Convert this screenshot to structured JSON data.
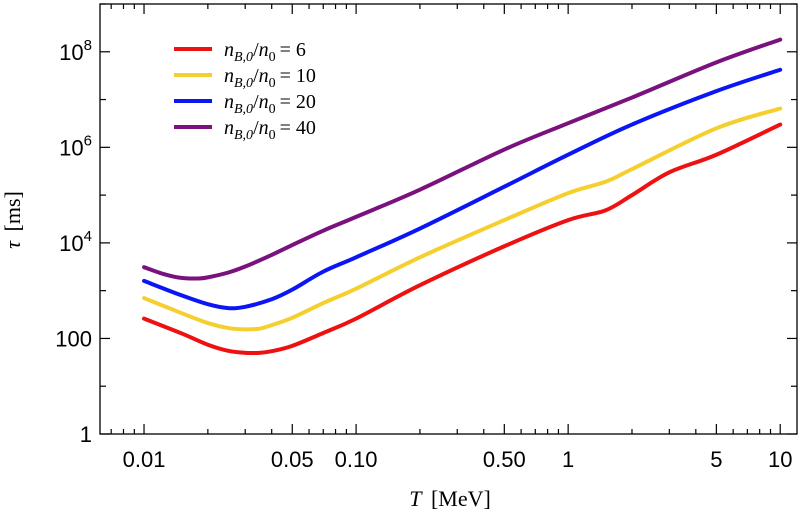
{
  "chart_data": {
    "type": "line",
    "xscale": "log",
    "yscale": "log",
    "xlim": [
      0.0062,
      12
    ],
    "ylim": [
      1,
      1000000000.0
    ],
    "xlabel": "T",
    "xlabel_unit": "[MeV]",
    "ylabel": "τ",
    "ylabel_unit": "[ms]",
    "x_ticks": [
      {
        "value": 0.01,
        "label": "0.01"
      },
      {
        "value": 0.05,
        "label": "0.05"
      },
      {
        "value": 0.1,
        "label": "0.10"
      },
      {
        "value": 0.5,
        "label": "0.50"
      },
      {
        "value": 1,
        "label": "1"
      },
      {
        "value": 5,
        "label": "5"
      },
      {
        "value": 10,
        "label": "10"
      }
    ],
    "y_ticks": [
      {
        "value": 1,
        "base": "1",
        "exp": ""
      },
      {
        "value": 100,
        "base": "100",
        "exp": ""
      },
      {
        "value": 10000,
        "base": "10",
        "exp": "4"
      },
      {
        "value": 1000000,
        "base": "10",
        "exp": "6"
      },
      {
        "value": 100000000,
        "base": "10",
        "exp": "8"
      }
    ],
    "legend_position": "top-left",
    "grid": false,
    "series": [
      {
        "name": "n_{B,0}/n_0 = 6",
        "label_sub": "B,0",
        "label_value": "6",
        "color": "#ee1111",
        "x": [
          0.01,
          0.015,
          0.02,
          0.025,
          0.03,
          0.035,
          0.04,
          0.05,
          0.07,
          0.1,
          0.2,
          0.5,
          1.0,
          1.5,
          2.0,
          3.0,
          5.0,
          10.0
        ],
        "y": [
          260,
          128,
          74,
          55,
          50,
          50,
          54,
          70,
          130,
          260,
          1300,
          8500,
          30000,
          48000,
          100000,
          300000,
          700000,
          3000000
        ]
      },
      {
        "name": "n_{B,0}/n_0 = 10",
        "label_sub": "B,0",
        "label_value": "10",
        "color": "#f5cf2e",
        "x": [
          0.01,
          0.015,
          0.02,
          0.025,
          0.03,
          0.035,
          0.04,
          0.05,
          0.07,
          0.1,
          0.2,
          0.5,
          1.0,
          1.5,
          2.0,
          5.0,
          10.0
        ],
        "y": [
          700,
          340,
          210,
          165,
          155,
          160,
          190,
          270,
          550,
          1100,
          5000,
          30000,
          110000,
          190000,
          350000,
          2500000,
          6500000
        ]
      },
      {
        "name": "n_{B,0}/n_0 = 20",
        "label_sub": "B,0",
        "label_value": "20",
        "color": "#0b16f5",
        "x": [
          0.01,
          0.015,
          0.02,
          0.025,
          0.03,
          0.04,
          0.05,
          0.07,
          0.1,
          0.2,
          0.5,
          1.0,
          2.0,
          5.0,
          10.0
        ],
        "y": [
          1600,
          800,
          520,
          430,
          460,
          660,
          1050,
          2500,
          5000,
          20000,
          150000,
          700000,
          3000000,
          15000000,
          42000000
        ]
      },
      {
        "name": "n_{B,0}/n_0 = 40",
        "label_sub": "B,0",
        "label_value": "40",
        "color": "#7a127e",
        "x": [
          0.01,
          0.0125,
          0.015,
          0.018,
          0.02,
          0.025,
          0.03,
          0.04,
          0.05,
          0.07,
          0.1,
          0.2,
          0.5,
          1.0,
          2.0,
          5.0,
          10.0
        ],
        "y": [
          3100,
          2200,
          1850,
          1800,
          1900,
          2400,
          3200,
          5600,
          9000,
          18000,
          35000,
          130000,
          900000,
          3200000,
          11000000,
          60000000,
          180000000
        ]
      }
    ]
  }
}
